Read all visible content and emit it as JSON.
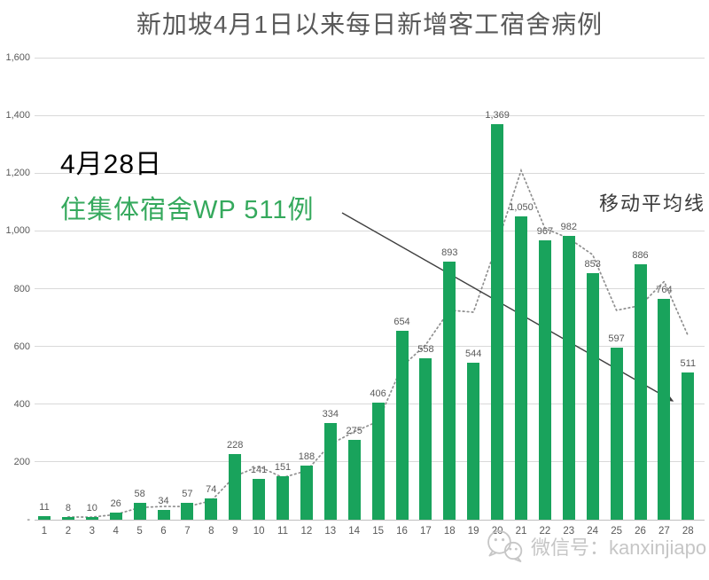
{
  "title": "新加坡4月1日以来每日新增客工宿舍病例",
  "annotation": {
    "date_line": "4月28日",
    "highlight_line": "住集体宿舍WP 511例",
    "arrow_target": "bar-28"
  },
  "legend": {
    "moving_average_label": "移动平均线"
  },
  "watermark": {
    "icon": "wechat-icon",
    "text": "微信号：kanxinjiapo"
  },
  "colors": {
    "bar": "#19a35c",
    "annotation_green": "#35a95d",
    "ma_line": "#8f8f8f",
    "arrow": "#3f3f3f",
    "gridline": "#d9d9d9",
    "axis_line": "#bfbfbf",
    "axis_text": "#595959",
    "title_text": "#595959",
    "watermark": "#c6c6c6"
  },
  "chart_data": {
    "type": "bar",
    "title": "新加坡4月1日以来每日新增客工宿舍病例",
    "categories": [
      "1",
      "2",
      "3",
      "4",
      "5",
      "6",
      "7",
      "8",
      "9",
      "10",
      "11",
      "12",
      "13",
      "14",
      "15",
      "16",
      "17",
      "18",
      "19",
      "20",
      "21",
      "22",
      "23",
      "24",
      "25",
      "26",
      "27",
      "28"
    ],
    "values": [
      11,
      8,
      10,
      26,
      58,
      34,
      57,
      74,
      228,
      141,
      151,
      188,
      334,
      275,
      406,
      654,
      558,
      893,
      544,
      1369,
      1050,
      967,
      982,
      853,
      597,
      886,
      764,
      511
    ],
    "bar_labels": [
      "11",
      "8",
      "10",
      "26",
      "58",
      "34",
      "57",
      "74",
      "228",
      "141",
      "151",
      "188",
      "334",
      "275",
      "406",
      "654",
      "558",
      "893",
      "544",
      "1,369",
      "1,050",
      "967",
      "982",
      "853",
      "597",
      "886",
      "764",
      "511"
    ],
    "ylim": [
      0,
      1600
    ],
    "grid": true,
    "y_ticks": [
      {
        "label": "1,600",
        "value": 1600
      },
      {
        "label": "1,400",
        "value": 1400
      },
      {
        "label": "1,200",
        "value": 1200
      },
      {
        "label": "1,000",
        "value": 1000
      },
      {
        "label": "800",
        "value": 800
      },
      {
        "label": "600",
        "value": 600
      },
      {
        "label": "400",
        "value": 400
      },
      {
        "label": "200",
        "value": 200
      },
      {
        "label": "-",
        "value": 0
      }
    ],
    "series": [
      {
        "name": "每日新增客工宿舍病例",
        "type": "bar",
        "values": [
          11,
          8,
          10,
          26,
          58,
          34,
          57,
          74,
          228,
          141,
          151,
          188,
          334,
          275,
          406,
          654,
          558,
          893,
          544,
          1369,
          1050,
          967,
          982,
          853,
          597,
          886,
          764,
          511
        ]
      },
      {
        "name": "移动平均线",
        "type": "dotted-line",
        "values": [
          null,
          9.5,
          9,
          18,
          42,
          46,
          45.5,
          65.5,
          151,
          184.5,
          146,
          169.5,
          261,
          304.5,
          340.5,
          530,
          606,
          725.5,
          718.5,
          956.5,
          1209.5,
          1008.5,
          974.5,
          917.5,
          725,
          741.5,
          825,
          637.5
        ]
      }
    ]
  }
}
